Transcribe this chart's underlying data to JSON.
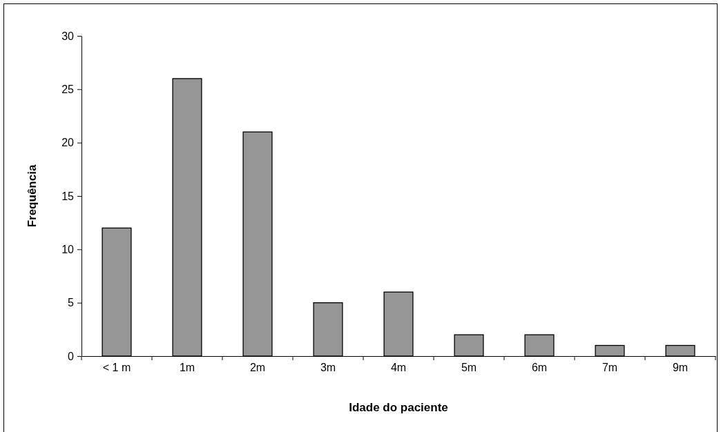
{
  "chart_data": {
    "type": "bar",
    "xlabel": "Idade do paciente",
    "ylabel": "Frequência",
    "categories": [
      "< 1 m",
      "1m",
      "2m",
      "3m",
      "4m",
      "5m",
      "6m",
      "7m",
      "9m"
    ],
    "values": [
      12,
      26,
      21,
      5,
      6,
      2,
      2,
      1,
      1
    ],
    "color": "#969696",
    "ylim": [
      0,
      30
    ],
    "yticks": [
      0,
      5,
      10,
      15,
      20,
      25,
      30
    ],
    "grid": false
  }
}
